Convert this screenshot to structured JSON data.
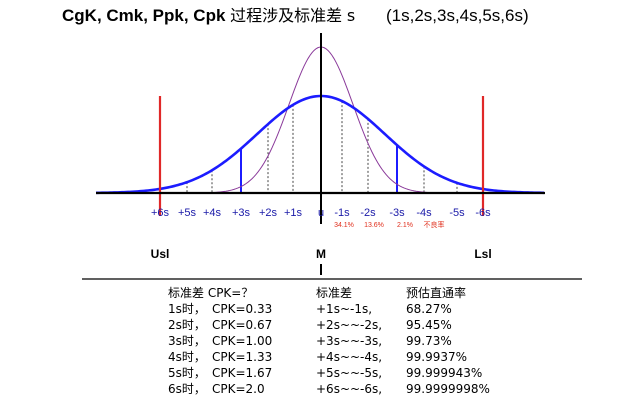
{
  "title": {
    "metrics": "CgK, Cmk, Ppk, Cpk",
    "cn": "过程涉及标准差",
    "symbol": "s",
    "set": "(1s,2s,3s,4s,5s,6s)"
  },
  "axis_ticks": [
    "+6s",
    "+5s",
    "+4s",
    "+3s",
    "+2s",
    "+1s",
    "u",
    "-1s",
    "-2s",
    "-3s",
    "-4s",
    "-5s",
    "-6s"
  ],
  "area_percents": [
    "34.1%",
    "13.6%",
    "2.1%",
    "不良率"
  ],
  "limit_labels": {
    "usl": "Usl",
    "mean": "M",
    "lsl": "Lsl"
  },
  "table": {
    "headers": [
      "标准差 CPK=？",
      "标准差",
      "预估直通率"
    ],
    "rows": [
      {
        "sigma": "1s时，",
        "cpk": "CPK=0.33",
        "range": "+1s~-1s,",
        "yield": "68.27%"
      },
      {
        "sigma": "2s时，",
        "cpk": "CPK=0.67",
        "range": "+2s~~-2s,",
        "yield": "95.45%"
      },
      {
        "sigma": "3s时，",
        "cpk": "CPK=1.00",
        "range": "+3s~~-3s,",
        "yield": "99.73%"
      },
      {
        "sigma": "4s时，",
        "cpk": "CPK=1.33",
        "range": "+4s~~-4s,",
        "yield": "99.9937%"
      },
      {
        "sigma": "5s时，",
        "cpk": "CPK=1.67",
        "range": "+5s~~-5s,",
        "yield": "99.999943%"
      },
      {
        "sigma": "6s时，",
        "cpk": "CPK=2.0",
        "range": "+6s~~-6s,",
        "yield": "99.9999998%"
      }
    ]
  },
  "colors": {
    "wide_curve": "#1c1cff",
    "narrow_curve": "#8a3a9a",
    "spec_limit": "#e02828",
    "tick_text": "#1a1aa8",
    "percent_text": "#e0301e"
  }
}
